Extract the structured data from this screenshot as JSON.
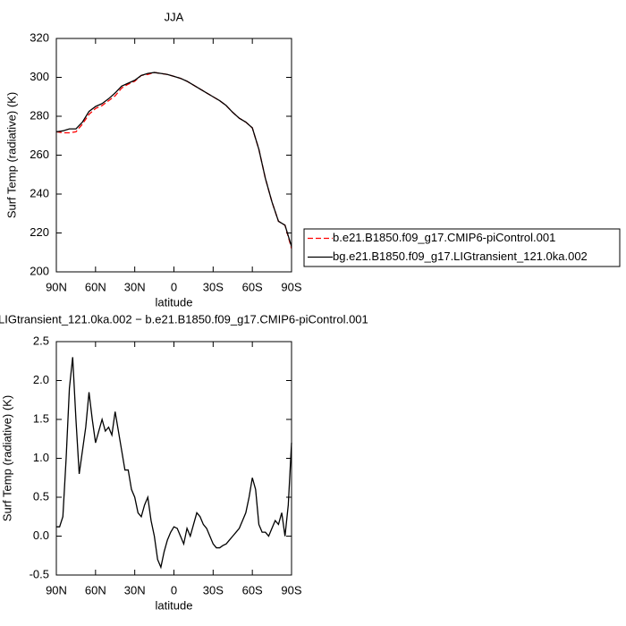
{
  "chart_data": [
    {
      "type": "line",
      "title": "JJA",
      "xlabel": "latitude",
      "ylabel": "Surf Temp (radiative) (K)",
      "x": [
        90,
        85,
        80,
        75,
        70,
        65,
        60,
        55,
        50,
        45,
        40,
        35,
        30,
        25,
        20,
        15,
        10,
        5,
        0,
        -5,
        -10,
        -15,
        -20,
        -25,
        -30,
        -35,
        -40,
        -45,
        -50,
        -55,
        -60,
        -65,
        -70,
        -75,
        -80,
        -85,
        -90
      ],
      "series": [
        {
          "name": "b.e21.B1850.f09_g17.CMIP6-piControl.001",
          "color": "#ff0000",
          "linestyle": "dashed",
          "values": [
            272,
            271.5,
            271.5,
            272,
            276,
            281,
            284,
            285.5,
            288,
            290.5,
            294.5,
            296.5,
            298,
            301,
            301.5,
            302.5,
            302,
            301.5,
            300.5,
            299.5,
            298,
            296,
            294,
            292,
            290,
            288,
            285.5,
            282,
            279,
            277,
            274,
            263,
            248,
            236,
            226,
            224,
            212
          ]
        },
        {
          "name": "bg.e21.B1850.f09_g17.LIGtransient_121.0ka.002",
          "color": "#000000",
          "linestyle": "solid",
          "values": [
            272,
            272.5,
            273.5,
            273.5,
            277,
            282.5,
            285,
            286.5,
            289,
            292,
            295.5,
            297,
            298.5,
            301,
            302,
            302.5,
            302,
            301.5,
            300.5,
            299.5,
            298,
            296,
            294,
            292,
            290,
            288,
            285.5,
            282,
            279,
            277,
            274,
            263,
            248,
            236,
            226,
            224,
            213
          ]
        }
      ],
      "xlim": [
        90,
        -90
      ],
      "xticks": [
        {
          "value": 90,
          "label": "90N"
        },
        {
          "value": 60,
          "label": "60N"
        },
        {
          "value": 30,
          "label": "30N"
        },
        0,
        {
          "value": -30,
          "label": "30S"
        },
        {
          "value": -60,
          "label": "60S"
        },
        {
          "value": -90,
          "label": "90S"
        }
      ],
      "ylim": [
        200,
        320
      ],
      "yticks": [
        200,
        220,
        240,
        260,
        280,
        300,
        320
      ],
      "legend": "outside-right"
    },
    {
      "type": "line",
      "title": "LIGtransient_121.0ka.002 − b.e21.B1850.f09_g17.CMIP6-piControl.001",
      "xlabel": "latitude",
      "ylabel": "Surf Temp (radiative) (K)",
      "x": [
        90,
        87.5,
        85,
        82.5,
        80,
        77.5,
        75,
        72.5,
        70,
        67.5,
        65,
        62.5,
        60,
        57.5,
        55,
        52.5,
        50,
        47.5,
        45,
        42.5,
        40,
        37.5,
        35,
        32.5,
        30,
        27.5,
        25,
        22.5,
        20,
        17.5,
        15,
        12.5,
        10,
        7.5,
        5,
        2.5,
        0,
        -2.5,
        -5,
        -7.5,
        -10,
        -12.5,
        -15,
        -17.5,
        -20,
        -22.5,
        -25,
        -27.5,
        -30,
        -32.5,
        -35,
        -37.5,
        -40,
        -42.5,
        -45,
        -47.5,
        -50,
        -52.5,
        -55,
        -57.5,
        -60,
        -62.5,
        -65,
        -67.5,
        -70,
        -72.5,
        -75,
        -77.5,
        -80,
        -82.5,
        -85,
        -87.5,
        -90
      ],
      "series": [
        {
          "color": "#000000",
          "linestyle": "solid",
          "values": [
            0.12,
            0.12,
            0.25,
            1.0,
            1.9,
            2.3,
            1.5,
            0.8,
            1.1,
            1.4,
            1.85,
            1.5,
            1.2,
            1.35,
            1.5,
            1.35,
            1.4,
            1.3,
            1.6,
            1.35,
            1.1,
            0.85,
            0.85,
            0.6,
            0.5,
            0.3,
            0.25,
            0.4,
            0.5,
            0.2,
            0.0,
            -0.3,
            -0.4,
            -0.2,
            -0.05,
            0.05,
            0.12,
            0.1,
            0.0,
            -0.1,
            0.1,
            0.0,
            0.15,
            0.3,
            0.25,
            0.15,
            0.1,
            0.0,
            -0.1,
            -0.15,
            -0.15,
            -0.12,
            -0.1,
            -0.05,
            0.0,
            0.05,
            0.1,
            0.2,
            0.3,
            0.5,
            0.75,
            0.6,
            0.15,
            0.05,
            0.05,
            0.0,
            0.1,
            0.2,
            0.15,
            0.3,
            0.0,
            0.4,
            1.2
          ]
        }
      ],
      "xlim": [
        90,
        -90
      ],
      "xticks": [
        {
          "value": 90,
          "label": "90N"
        },
        {
          "value": 60,
          "label": "60N"
        },
        {
          "value": 30,
          "label": "30N"
        },
        0,
        {
          "value": -30,
          "label": "30S"
        },
        {
          "value": -60,
          "label": "60S"
        },
        {
          "value": -90,
          "label": "90S"
        }
      ],
      "ylim": [
        -0.5,
        2.5
      ],
      "yticks": [
        -0.5,
        {
          "value": 0,
          "label": "0.0"
        },
        0.5,
        {
          "value": 1,
          "label": "1.0"
        },
        1.5,
        {
          "value": 2,
          "label": "2.0"
        },
        2.5
      ]
    }
  ]
}
